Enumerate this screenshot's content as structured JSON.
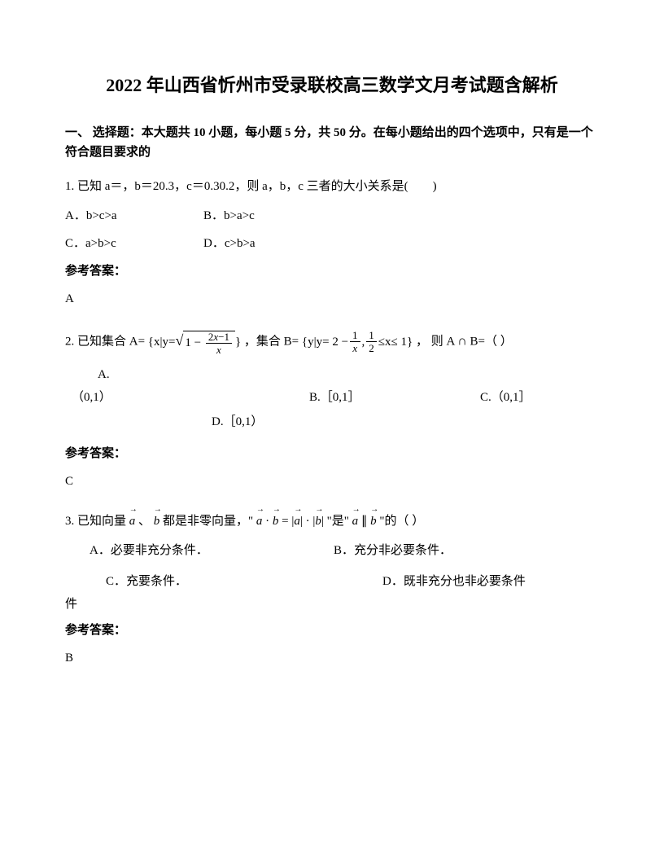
{
  "title": "2022 年山西省忻州市受录联校高三数学文月考试题含解析",
  "section_header": "一、 选择题：本大题共 10 小题，每小题 5 分，共 50 分。在每小题给出的四个选项中，只有是一个符合题目要求的",
  "q1": {
    "stem": "1. 已知 a＝，b＝20.3，c＝0.30.2，则 a，b，c 三者的大小关系是(　　)",
    "optA": "A．b>c>a",
    "optB": "B．b>a>c",
    "optC": "C．a>b>c",
    "optD": "D．c>b>a",
    "answer_label": "参考答案：",
    "answer": "A"
  },
  "q2": {
    "stem_pre": "2. 已知集合 A=",
    "stem_mid": "，集合 B=",
    "stem_post": "， 则 A",
    "stem_end": "B=（  ）",
    "optA_label": "A.",
    "optA": "（0,1）",
    "optB": "B.［0,1］",
    "optC": "C.（0,1］",
    "optD": "D.［0,1）",
    "answer_label": "参考答案：",
    "answer": "C"
  },
  "q3": {
    "stem_pre": "3. 已知向量",
    "stem_mid1": "、",
    "stem_mid2": " 都是非零向量，\"",
    "stem_mid3": "\"是\"",
    "stem_end": "\"的（   ）",
    "optA": "A．必要非充分条件．",
    "optB": "B．充分非必要条件．",
    "optC": "C．充要条件．",
    "optD": "D．既非充分也非必要条件",
    "optD_suffix": "件",
    "answer_label": "参考答案：",
    "answer": "B"
  }
}
